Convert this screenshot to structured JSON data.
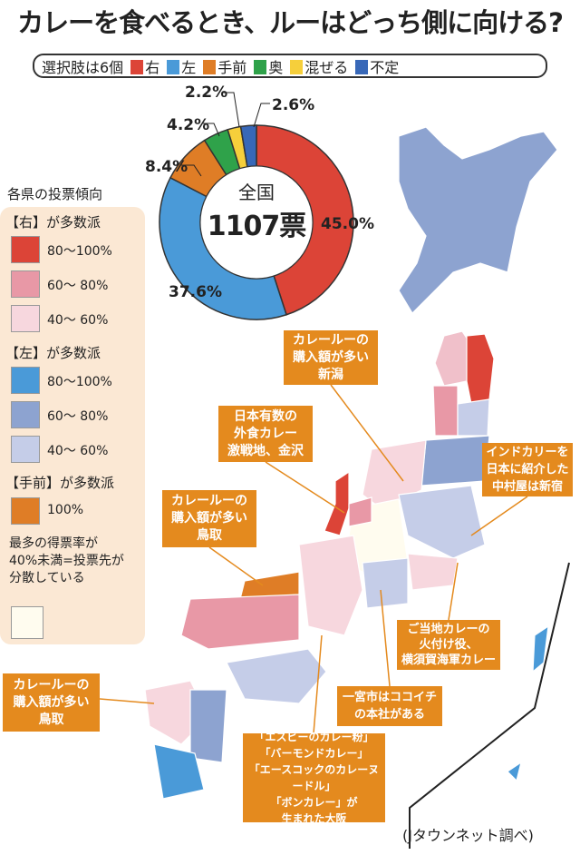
{
  "title": "カレーを食べるとき、ルーはどっち側に向ける?",
  "options": {
    "label": "選択肢は6個",
    "items": [
      {
        "label": "右",
        "color": "#dc4437"
      },
      {
        "label": "左",
        "color": "#4a9ad8"
      },
      {
        "label": "手前",
        "color": "#df7d26"
      },
      {
        "label": "奥",
        "color": "#2fa24a"
      },
      {
        "label": "混ぜる",
        "color": "#f6cf3b"
      },
      {
        "label": "不定",
        "color": "#3868b8"
      }
    ]
  },
  "chart_data": {
    "type": "pie",
    "donut": true,
    "center_title": "全国",
    "center_value": "1107票",
    "categories": [
      "右",
      "左",
      "手前",
      "奥",
      "混ぜる",
      "不定"
    ],
    "values": [
      45.0,
      37.6,
      8.4,
      4.2,
      2.2,
      2.6
    ],
    "labels": [
      "45.0%",
      "37.6%",
      "8.4%",
      "4.2%",
      "2.2%",
      "2.6%"
    ],
    "colors": [
      "#dc4437",
      "#4a9ad8",
      "#df7d26",
      "#2fa24a",
      "#f6cf3b",
      "#3868b8"
    ]
  },
  "legend": {
    "title": "各県の投票傾向",
    "groups": [
      {
        "heading": "【右】が多数派",
        "rows": [
          {
            "label": "80〜100%",
            "color": "#dc4437"
          },
          {
            "label": "60〜 80%",
            "color": "#e898a6"
          },
          {
            "label": "40〜 60%",
            "color": "#f7d7de"
          }
        ]
      },
      {
        "heading": "【左】が多数派",
        "rows": [
          {
            "label": "80〜100%",
            "color": "#4a9ad8"
          },
          {
            "label": "60〜 80%",
            "color": "#8da3d0"
          },
          {
            "label": "40〜 60%",
            "color": "#c5cde8"
          }
        ]
      },
      {
        "heading": "【手前】が多数派",
        "rows": [
          {
            "label": "100%",
            "color": "#df7d26"
          }
        ]
      }
    ],
    "dispersed": {
      "text": "最多の得票率が\n40%未満=投票先が\n分散している",
      "color": "#fffcef"
    }
  },
  "callouts": [
    "カレールーの\n購入額が多い\n新潟",
    "日本有数の\n外食カレー\n激戦地、金沢",
    "カレールーの\n購入額が多い\n鳥取",
    "インドカリーを\n日本に紹介した\n中村屋は新宿",
    "ご当地カレーの\n火付け役、\n横須賀海軍カレー",
    "一宮市はココイチ\nの本社がある",
    "「エスビーのカレー粉」\n「バーモンドカレー」\n「エースコックのカレーヌードル」\n「ボンカレー」が\n生まれた大阪",
    "カレールーの\n購入額が多い\n鳥取"
  ],
  "credit": "(Jタウンネット調べ)"
}
